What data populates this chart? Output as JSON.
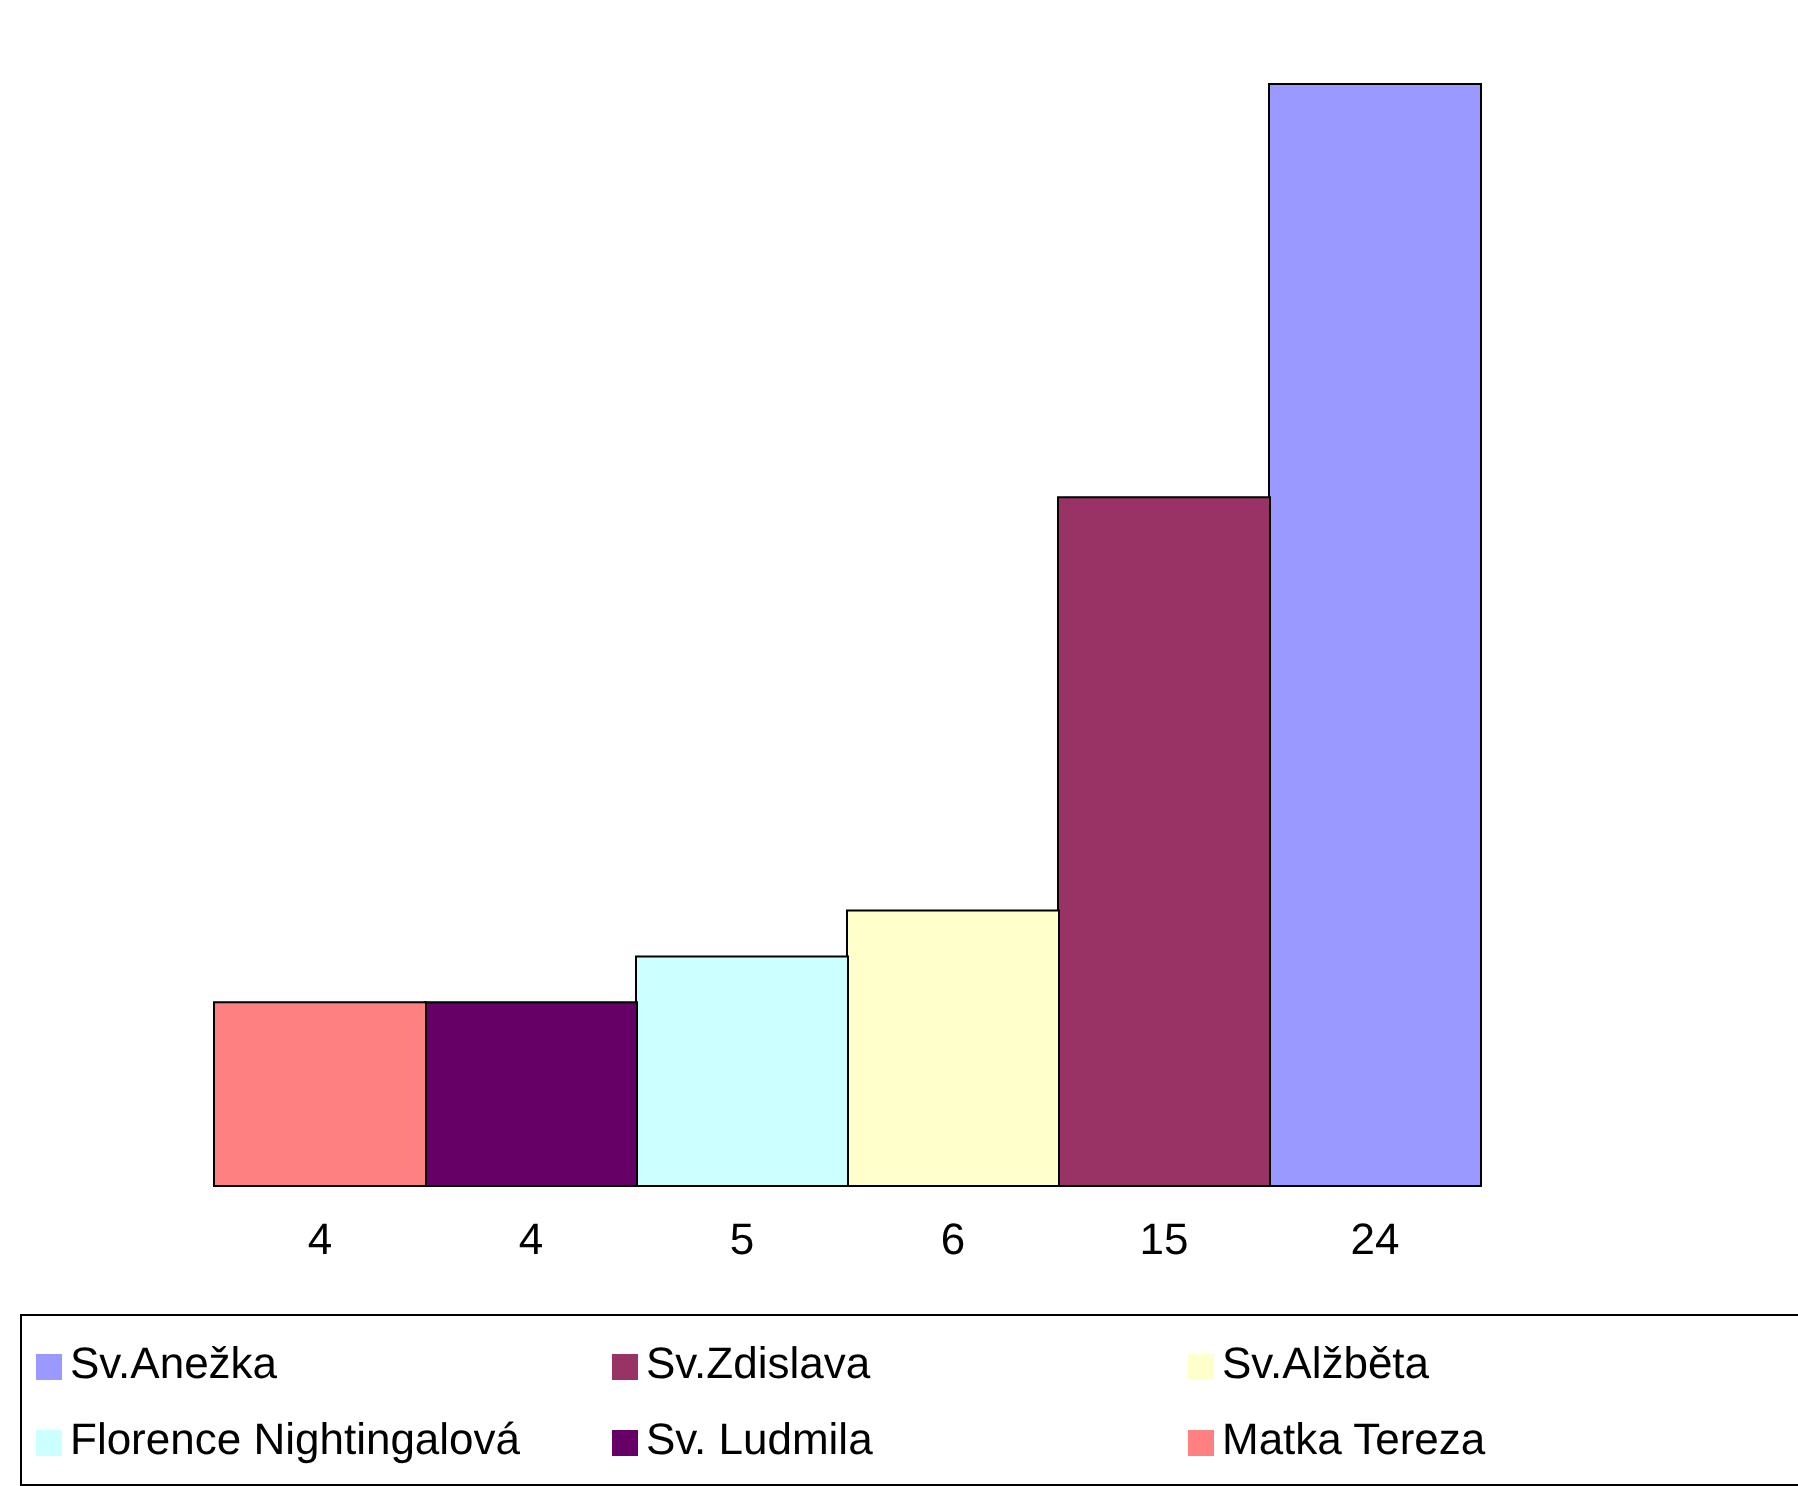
{
  "chart_data": {
    "type": "bar",
    "categories": [
      null,
      null,
      null,
      null,
      null,
      null
    ],
    "stacked": true,
    "series": [
      {
        "name": "Sv.Anežka",
        "color": "#9999ff",
        "values": [
          null,
          null,
          null,
          null,
          null,
          24
        ],
        "value_labels": [
          null,
          null,
          null,
          null,
          null,
          "24"
        ]
      },
      {
        "name": "Sv.Zdislava",
        "color": "#993366",
        "values": [
          null,
          null,
          null,
          null,
          15,
          null
        ],
        "value_labels": [
          null,
          null,
          null,
          null,
          "15",
          null
        ]
      },
      {
        "name": "Sv.Alžběta",
        "color": "#ffffcc",
        "values": [
          null,
          null,
          null,
          6,
          null,
          null
        ],
        "value_labels": [
          null,
          null,
          null,
          "6",
          null,
          null
        ]
      },
      {
        "name": "Florence Nightingalová",
        "color": "#ccffff",
        "values": [
          null,
          null,
          5,
          null,
          null,
          null
        ],
        "value_labels": [
          null,
          null,
          "5",
          null,
          null,
          null
        ]
      },
      {
        "name": "Sv. Ludmila",
        "color": "#660066",
        "values": [
          null,
          4,
          null,
          null,
          null,
          null
        ],
        "value_labels": [
          null,
          "4",
          null,
          null,
          null,
          null
        ]
      },
      {
        "name": "Matka Tereza",
        "color": "#ff8080",
        "values": [
          4,
          null,
          null,
          null,
          null,
          null
        ],
        "value_labels": [
          "4",
          null,
          null,
          null,
          null,
          null
        ]
      }
    ],
    "legend": "bottom",
    "tick_labels": false
  }
}
